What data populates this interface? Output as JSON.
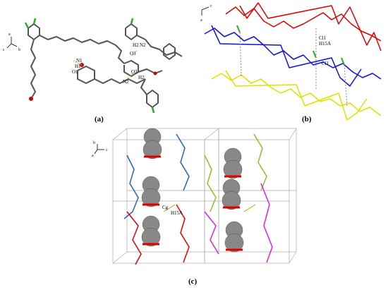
{
  "panels": [
    {
      "label": "(a)",
      "axes": [
        "a",
        "c",
        "b"
      ],
      "atom_labels": [
        "N1",
        "H1",
        "O1",
        "H2",
        "N2",
        "O3",
        "O3",
        "H2",
        "N2"
      ]
    },
    {
      "label": "(b)",
      "axes": [
        "c",
        "a"
      ],
      "atom_labels": [
        "Cl1",
        "H15A",
        "Cl1"
      ]
    },
    {
      "label": "(c)",
      "axes": [
        "b",
        "c",
        "a"
      ],
      "atom_labels": [
        "Cg",
        "H15A"
      ]
    }
  ]
}
